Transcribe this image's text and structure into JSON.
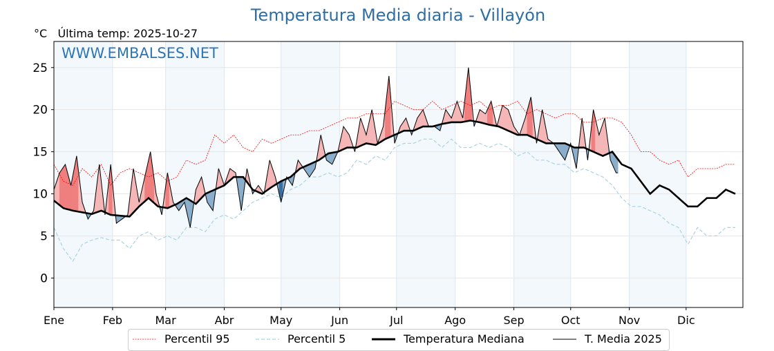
{
  "chart_data": {
    "type": "line",
    "title": "Temperatura Media diaria - Villayón",
    "unit_label": "°C",
    "subtitle": "Última temp: 2025-10-27",
    "watermark": "WWW.EMBALSES.NET",
    "ylim": [
      -3.5,
      28.1
    ],
    "xlim_days": [
      0,
      364
    ],
    "yticks": [
      "0",
      "5",
      "10",
      "15",
      "20",
      "25"
    ],
    "ytick_values": [
      0,
      5,
      10,
      15,
      20,
      25
    ],
    "xticks": [
      "Ene",
      "Feb",
      "Mar",
      "Abr",
      "May",
      "Jun",
      "Jul",
      "Ago",
      "Sep",
      "Oct",
      "Nov",
      "Dic"
    ],
    "xtick_days": [
      0,
      31,
      59,
      90,
      120,
      151,
      181,
      212,
      243,
      273,
      304,
      334
    ],
    "grid": true,
    "legend_placement": "bottom-center",
    "colors": {
      "p95": "#ff0000",
      "p5": "#a8d3e3",
      "median": "#000000",
      "current": "#000000",
      "above": "#f4b6b6",
      "above_extreme": "#ef7f7f",
      "below": "#8aaecb",
      "below_extreme": "#3a6f9e",
      "band": "#f3f8fc"
    },
    "legend": [
      "Percentil 95",
      "Percentil 5",
      "Temperatura Mediana",
      "T. Media 2025"
    ],
    "x_step_days": 5,
    "series": [
      {
        "name": "Percentil 95",
        "values": [
          13.5,
          11.5,
          11,
          13,
          12,
          13.5,
          11,
          12.5,
          13,
          12.5,
          12,
          12.5,
          11.5,
          12,
          14,
          13.5,
          14,
          17,
          16,
          17,
          15.5,
          15,
          16.5,
          16,
          16.5,
          17,
          17,
          17.5,
          17.5,
          18,
          18.5,
          19,
          19,
          19.5,
          19.5,
          19.5,
          21,
          20.5,
          20,
          20,
          21,
          20,
          20.5,
          21,
          20.5,
          21,
          20,
          20.5,
          20.5,
          21,
          19.5,
          20,
          19.5,
          19,
          19.5,
          19.5,
          18.5,
          18.5,
          19,
          19,
          18.5,
          17,
          15,
          15,
          14,
          13.5,
          14,
          12,
          13,
          13,
          13,
          13.5,
          13.5
        ]
      },
      {
        "name": "Percentil 5",
        "values": [
          6,
          3.5,
          2,
          4,
          4.5,
          4.8,
          4.5,
          4.5,
          3.5,
          5,
          5.5,
          4.5,
          5,
          4.5,
          6,
          6,
          5.5,
          7,
          7.5,
          7,
          8,
          9,
          9.5,
          10,
          9.5,
          10.5,
          11,
          12,
          12,
          12.5,
          12,
          12.5,
          14,
          13.5,
          14.5,
          14,
          15.5,
          16,
          16,
          16.5,
          16.5,
          15.5,
          16.5,
          15.5,
          15.5,
          16,
          15.5,
          16,
          15.5,
          14.5,
          15,
          14,
          14,
          13.5,
          13.5,
          12.5,
          13,
          12.5,
          12,
          11,
          9.5,
          8.5,
          8.5,
          8,
          7.5,
          6.5,
          6,
          4,
          6,
          5,
          5,
          6,
          6
        ]
      },
      {
        "name": "Temperatura Mediana",
        "values": [
          9.2,
          8.3,
          8,
          7.8,
          7.6,
          8,
          7.5,
          7.4,
          7.3,
          8.5,
          9.5,
          8.5,
          8.3,
          8.8,
          9.5,
          8.8,
          10,
          10.5,
          11,
          12,
          12,
          10.5,
          10,
          10.8,
          11.5,
          12,
          13,
          13.5,
          14,
          14.8,
          15,
          15.5,
          15.5,
          16,
          15.8,
          16.5,
          17,
          17.5,
          17.5,
          18,
          18,
          18.3,
          18.5,
          18.5,
          18.7,
          18.5,
          18.2,
          18,
          17.5,
          17,
          17,
          16.5,
          16,
          16,
          16,
          15.5,
          15.5,
          15,
          14.5,
          15,
          13.5,
          13,
          11.5,
          10,
          11,
          10.5,
          9.5,
          8.5,
          8.5,
          9.5,
          9.5,
          10.5,
          10
        ]
      },
      {
        "name": "T. Media 2025",
        "x_step_days": 3,
        "values": [
          10.5,
          12.5,
          13.5,
          11,
          14.5,
          9,
          7,
          8,
          13.5,
          7.5,
          13.5,
          6.5,
          7,
          7.5,
          13,
          9,
          12,
          15,
          10,
          7.5,
          12.5,
          9,
          8,
          9,
          6,
          10.5,
          12,
          9,
          8,
          13,
          11,
          13,
          12.5,
          8,
          13,
          10,
          11,
          10,
          14,
          12,
          9,
          12,
          11,
          14,
          13,
          12,
          13,
          17,
          14,
          13.5,
          15,
          18,
          17,
          15,
          19,
          17,
          20,
          16,
          18,
          24,
          16,
          18,
          19,
          17,
          19,
          20,
          18,
          18,
          17.5,
          20,
          19,
          21,
          19,
          25,
          18,
          20,
          19.5,
          21,
          18,
          20.5,
          20,
          18,
          17,
          19,
          21.5,
          16,
          20,
          16.5,
          16,
          15,
          14,
          16,
          13,
          19,
          14,
          20,
          17,
          19,
          14,
          12.5
        ]
      }
    ]
  }
}
